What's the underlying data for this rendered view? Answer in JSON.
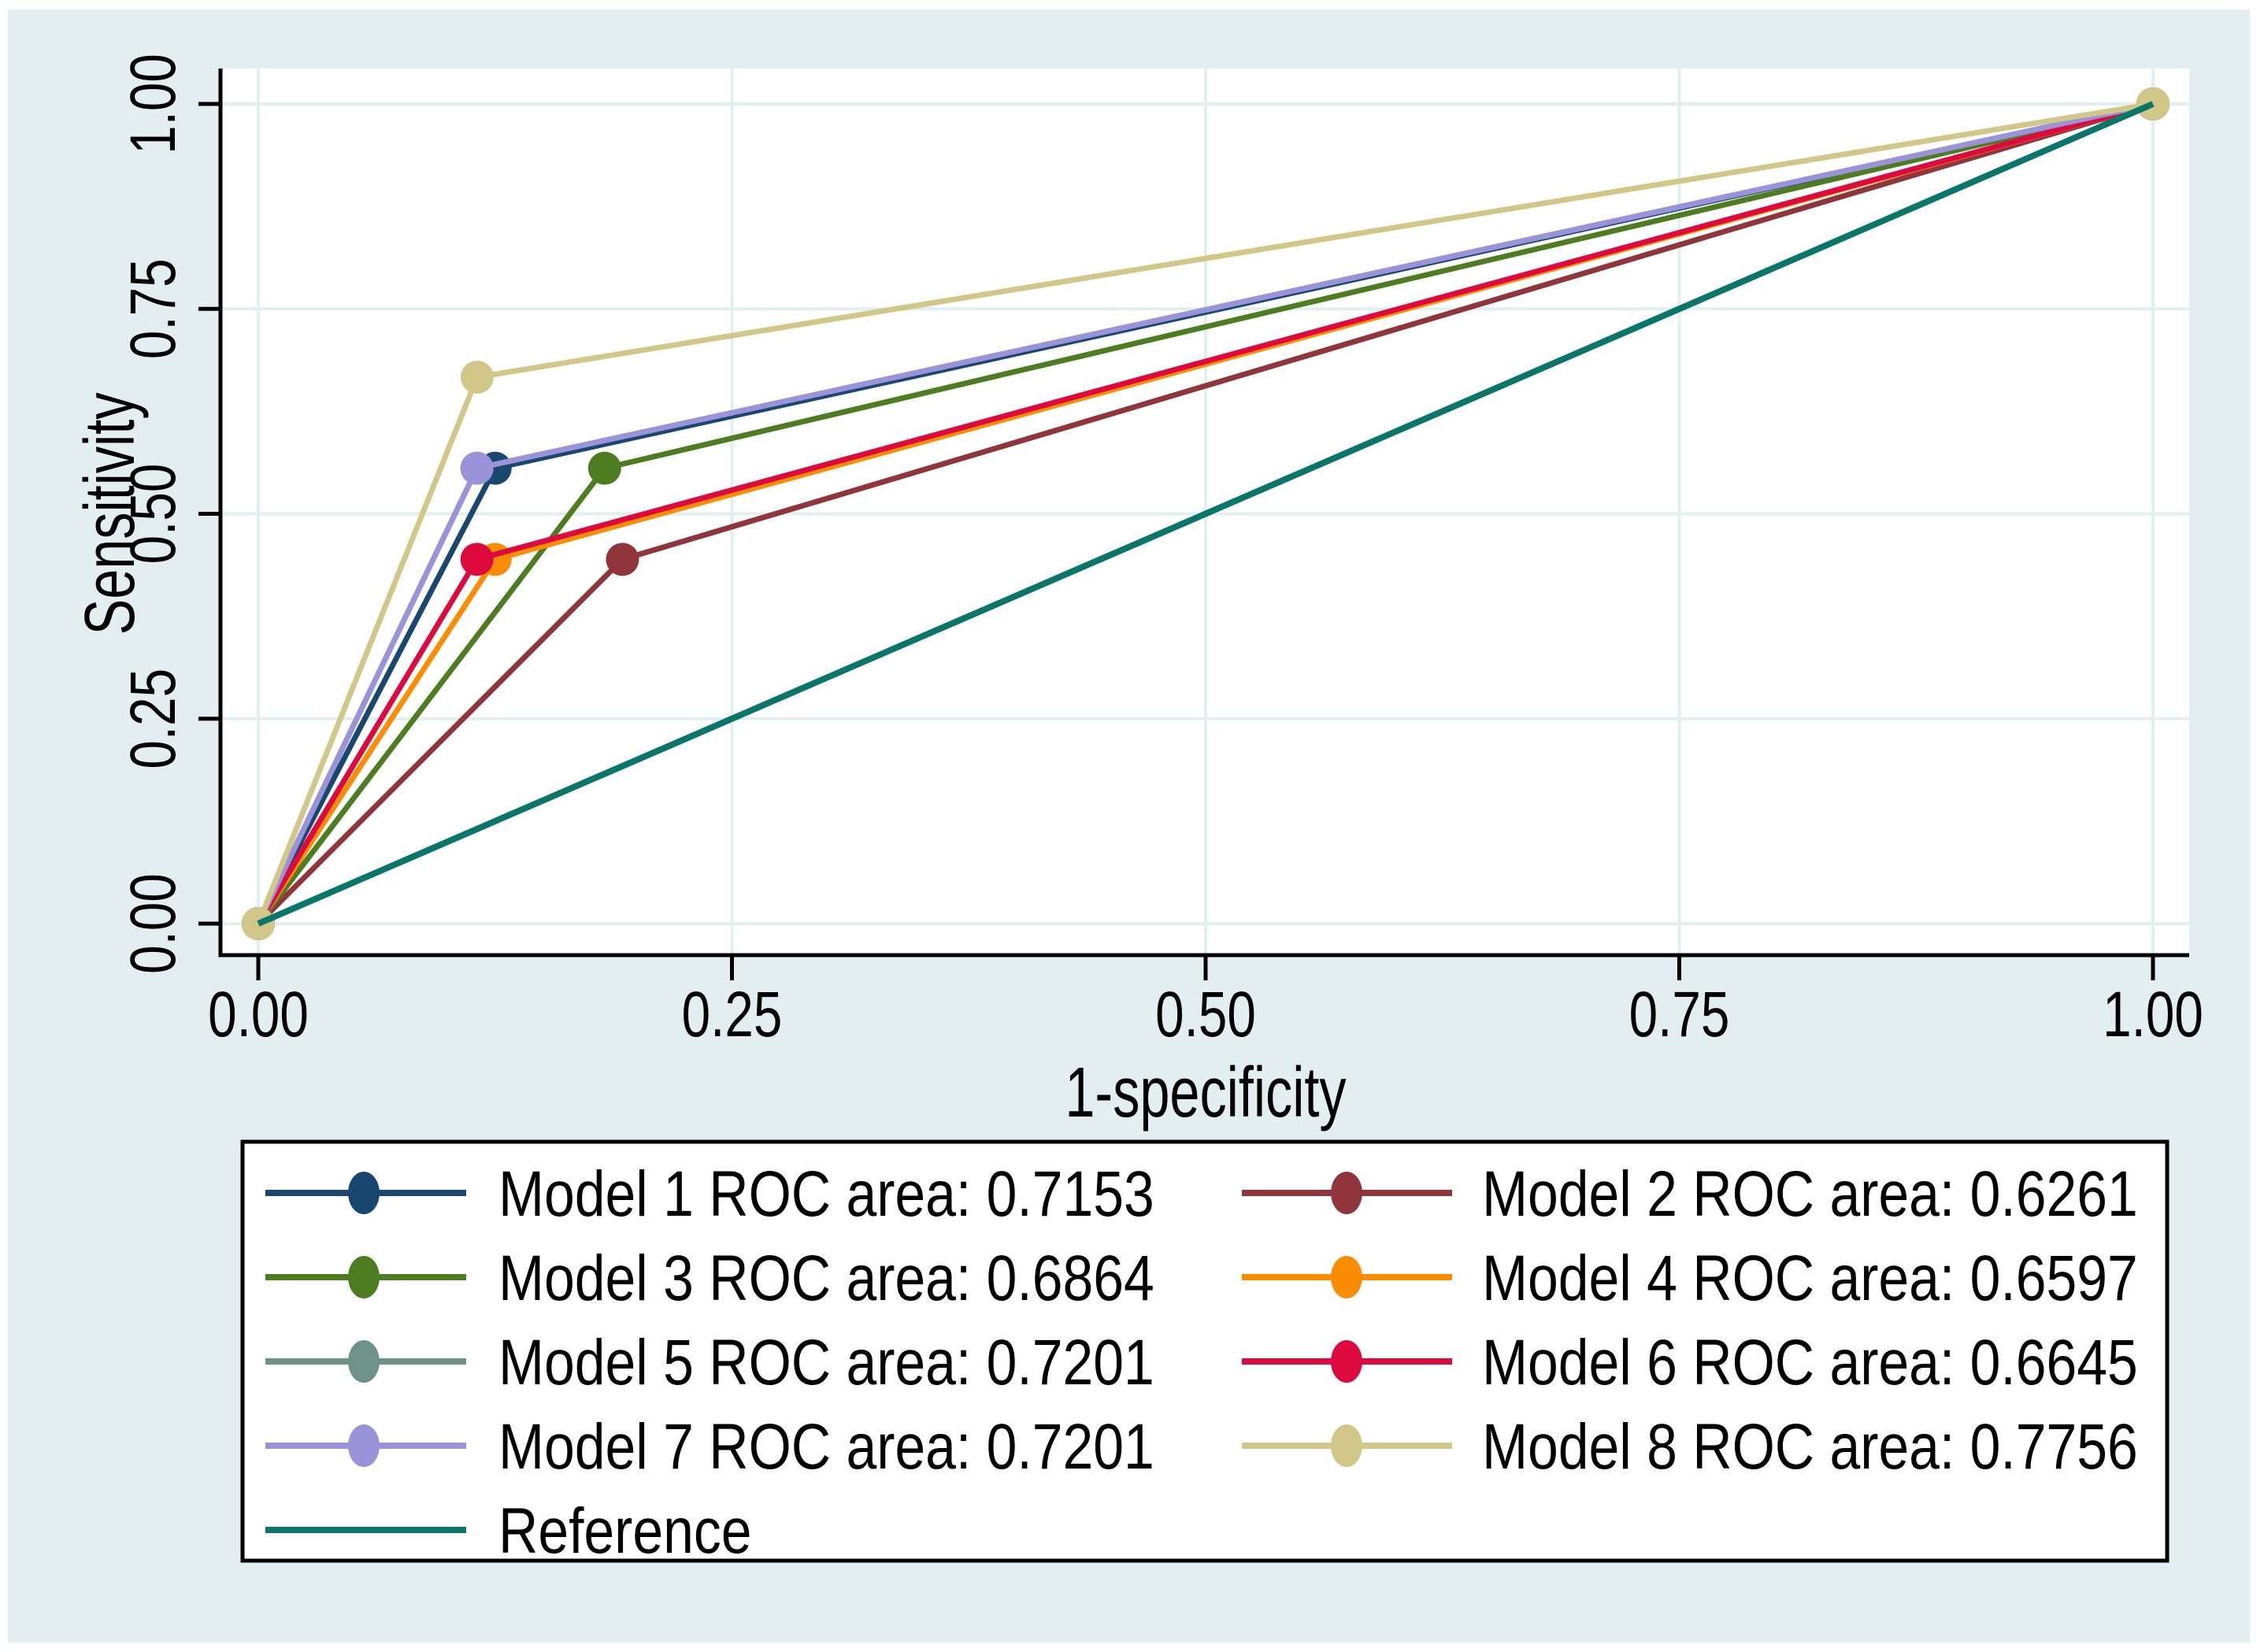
{
  "figure": {
    "background": "#ffffff",
    "panel_background": "#e3eef0",
    "plot_background": "#ffffff",
    "grid_color": "#e1efef",
    "axis_color": "#000000",
    "legend": {
      "background": "#ffffff",
      "border_color": "#000000"
    }
  },
  "chart_data": {
    "type": "line",
    "title": "",
    "xlabel": "1-specificity",
    "ylabel": "Sensitivity",
    "xlim": [
      0,
      1
    ],
    "ylim": [
      0,
      1
    ],
    "grid": true,
    "legend_position": "bottom",
    "x_ticks": {
      "values": [
        0,
        0.25,
        0.5,
        0.75,
        1
      ],
      "labels": [
        "0.00",
        "0.25",
        "0.50",
        "0.75",
        "1.00"
      ]
    },
    "y_ticks": {
      "values": [
        0,
        0.25,
        0.5,
        0.75,
        1
      ],
      "labels": [
        "0.00",
        "0.25",
        "0.50",
        "0.75",
        "1.00"
      ]
    },
    "series": [
      {
        "name": "Model 1",
        "legend_label": "Model 1 ROC area: 0.7153",
        "roc_area": 0.7153,
        "color": "#1a476f",
        "marker": true,
        "points": [
          [
            0,
            0
          ],
          [
            0.125,
            0.5556
          ],
          [
            1,
            1
          ]
        ]
      },
      {
        "name": "Model 2",
        "legend_label": "Model 2 ROC area: 0.6261",
        "roc_area": 0.6261,
        "color": "#90353b",
        "marker": true,
        "points": [
          [
            0,
            0
          ],
          [
            0.1922,
            0.4444
          ],
          [
            1,
            1
          ]
        ]
      },
      {
        "name": "Model 3",
        "legend_label": "Model 3 ROC area: 0.6864",
        "roc_area": 0.6864,
        "color": "#4e7d21",
        "marker": true,
        "points": [
          [
            0,
            0
          ],
          [
            0.1828,
            0.5556
          ],
          [
            1,
            1
          ]
        ]
      },
      {
        "name": "Model 4",
        "legend_label": "Model 4 ROC area: 0.6597",
        "roc_area": 0.6597,
        "color": "#fb8d05",
        "marker": true,
        "points": [
          [
            0,
            0
          ],
          [
            0.125,
            0.4444
          ],
          [
            1,
            1
          ]
        ]
      },
      {
        "name": "Model 5",
        "legend_label": "Model 5 ROC area: 0.7201",
        "roc_area": 0.7201,
        "color": "#6e9287",
        "marker": true,
        "points": [
          [
            0,
            0
          ],
          [
            0.1154,
            0.5556
          ],
          [
            1,
            1
          ]
        ]
      },
      {
        "name": "Model 6",
        "legend_label": "Model 6 ROC area: 0.6645",
        "roc_area": 0.6645,
        "color": "#dd0a3f",
        "marker": true,
        "points": [
          [
            0,
            0
          ],
          [
            0.1154,
            0.4444
          ],
          [
            1,
            1
          ]
        ]
      },
      {
        "name": "Model 7",
        "legend_label": "Model 7 ROC area: 0.7201",
        "roc_area": 0.7201,
        "color": "#9a93d9",
        "marker": true,
        "points": [
          [
            0,
            0
          ],
          [
            0.1154,
            0.5556
          ],
          [
            1,
            1
          ]
        ]
      },
      {
        "name": "Model 8",
        "legend_label": "Model 8 ROC area: 0.7756",
        "roc_area": 0.7756,
        "color": "#d1c789",
        "marker": true,
        "points": [
          [
            0,
            0
          ],
          [
            0.1155,
            0.6667
          ],
          [
            1,
            1
          ]
        ]
      },
      {
        "name": "Reference",
        "legend_label": "Reference",
        "color": "#0a7569",
        "marker": false,
        "points": [
          [
            0,
            0
          ],
          [
            1,
            1
          ]
        ]
      }
    ]
  }
}
